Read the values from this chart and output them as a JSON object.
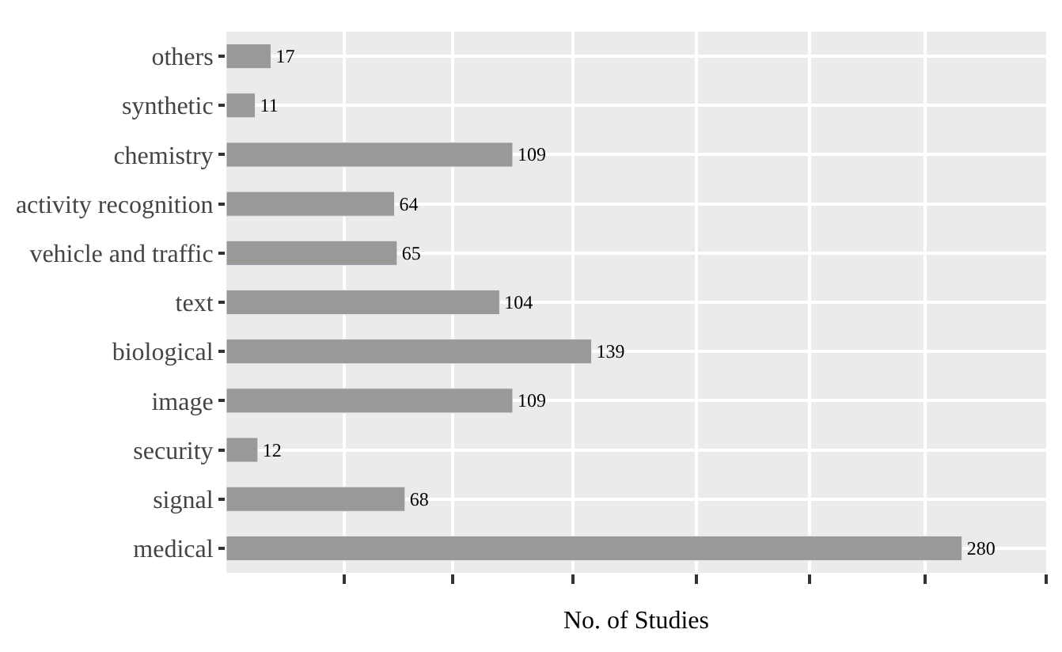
{
  "chart_data": {
    "type": "bar",
    "orientation": "horizontal",
    "xlabel": "No. of Studies",
    "categories": [
      "others",
      "synthetic",
      "chemistry",
      "activity recognition",
      "vehicle and traffic",
      "text",
      "biological",
      "image",
      "security",
      "signal",
      "medical"
    ],
    "values": [
      17,
      11,
      109,
      64,
      65,
      104,
      139,
      109,
      12,
      68,
      280
    ],
    "color": "#999999",
    "data_labels": true,
    "grid": true,
    "legend": false,
    "xlim": [
      0,
      312
    ],
    "xticks": [
      {
        "value": 45,
        "label": null
      },
      {
        "value": 86,
        "label": null
      },
      {
        "value": 132,
        "label": null
      },
      {
        "value": 179,
        "label": null
      },
      {
        "value": 222,
        "label": null
      },
      {
        "value": 266,
        "label": null
      },
      {
        "value": 312,
        "label": null
      }
    ]
  }
}
